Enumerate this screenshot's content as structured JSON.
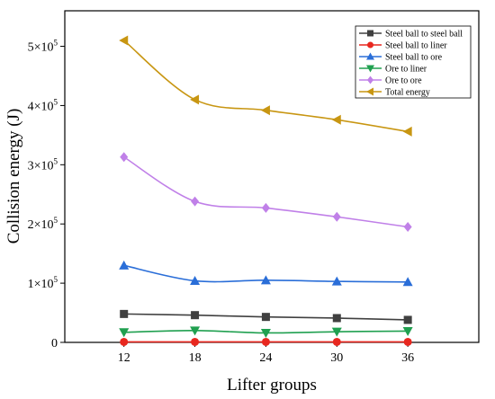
{
  "chart_data": {
    "type": "line",
    "title": "",
    "xlabel": "Lifter groups",
    "ylabel": "Collision energy (J)",
    "x": [
      12,
      18,
      24,
      30,
      36
    ],
    "x_ticks": [
      "12",
      "18",
      "24",
      "30",
      "36"
    ],
    "xlim": [
      7,
      42
    ],
    "ylim": [
      0,
      560000
    ],
    "y_ticks": [
      {
        "value": 0,
        "mantissa": "0",
        "exp": ""
      },
      {
        "value": 100000,
        "mantissa": "1×10",
        "exp": "5"
      },
      {
        "value": 200000,
        "mantissa": "2×10",
        "exp": "5"
      },
      {
        "value": 300000,
        "mantissa": "3×10",
        "exp": "5"
      },
      {
        "value": 400000,
        "mantissa": "4×10",
        "exp": "5"
      },
      {
        "value": 500000,
        "mantissa": "5×10",
        "exp": "5"
      }
    ],
    "grid": false,
    "legend_position": "top-right",
    "series": [
      {
        "name": "Steel ball to steel ball",
        "color": "#404040",
        "marker": "square",
        "values": [
          48000,
          46000,
          43000,
          41000,
          38000
        ]
      },
      {
        "name": "Steel ball to liner",
        "color": "#e8271f",
        "marker": "circle",
        "values": [
          800,
          800,
          800,
          800,
          800
        ]
      },
      {
        "name": "Steel ball to ore",
        "color": "#2a6ed8",
        "marker": "triangle-up",
        "values": [
          130000,
          104000,
          105000,
          103000,
          102000
        ]
      },
      {
        "name": "Ore to liner",
        "color": "#20a050",
        "marker": "triangle-down",
        "values": [
          17000,
          20000,
          16000,
          18000,
          19000
        ]
      },
      {
        "name": "Ore to ore",
        "color": "#c080e8",
        "marker": "diamond",
        "values": [
          313000,
          238000,
          227000,
          212000,
          195000
        ]
      },
      {
        "name": "Total energy",
        "color": "#c89612",
        "marker": "triangle-left",
        "values": [
          510000,
          410000,
          392000,
          376000,
          356000
        ]
      }
    ]
  }
}
